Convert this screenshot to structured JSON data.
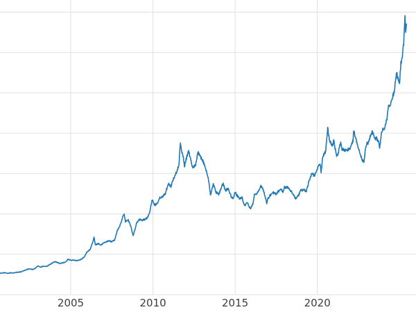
{
  "chart_data": {
    "type": "line",
    "title": "",
    "xlabel": "",
    "ylabel": "",
    "grid": true,
    "legend": "none",
    "xlim": [
      2000.7,
      2026.0
    ],
    "ylim": [
      0,
      3650
    ],
    "x_ticks": [
      {
        "year": 2005,
        "label": "2005"
      },
      {
        "year": 2010,
        "label": "2010"
      },
      {
        "year": 2015,
        "label": "2015"
      },
      {
        "year": 2020,
        "label": "2020"
      }
    ],
    "y_gridlines": [
      0,
      500,
      1000,
      1500,
      2000,
      2500,
      3000,
      3500
    ],
    "line_color": "#1f77b4",
    "grid_color": "#e0e0e0",
    "tick_color": "#3c3c3c",
    "background_color": "#ffffff",
    "series": [
      {
        "points": [
          [
            2000.7,
            265
          ],
          [
            2000.85,
            268
          ],
          [
            2001.0,
            272
          ],
          [
            2001.17,
            263
          ],
          [
            2001.33,
            272
          ],
          [
            2001.5,
            267
          ],
          [
            2001.67,
            276
          ],
          [
            2001.83,
            279
          ],
          [
            2002.0,
            284
          ],
          [
            2002.17,
            298
          ],
          [
            2002.33,
            312
          ],
          [
            2002.5,
            320
          ],
          [
            2002.67,
            312
          ],
          [
            2002.83,
            323
          ],
          [
            2003.0,
            356
          ],
          [
            2003.17,
            342
          ],
          [
            2003.33,
            352
          ],
          [
            2003.5,
            348
          ],
          [
            2003.67,
            366
          ],
          [
            2003.83,
            385
          ],
          [
            2004.0,
            408
          ],
          [
            2004.17,
            402
          ],
          [
            2004.33,
            388
          ],
          [
            2004.5,
            394
          ],
          [
            2004.67,
            403
          ],
          [
            2004.83,
            438
          ],
          [
            2005.0,
            426
          ],
          [
            2005.17,
            429
          ],
          [
            2005.33,
            421
          ],
          [
            2005.5,
            426
          ],
          [
            2005.67,
            440
          ],
          [
            2005.83,
            470
          ],
          [
            2006.0,
            532
          ],
          [
            2006.17,
            556
          ],
          [
            2006.33,
            642
          ],
          [
            2006.42,
            713
          ],
          [
            2006.5,
            618
          ],
          [
            2006.67,
            632
          ],
          [
            2006.83,
            614
          ],
          [
            2007.0,
            641
          ],
          [
            2007.17,
            656
          ],
          [
            2007.33,
            668
          ],
          [
            2007.5,
            657
          ],
          [
            2007.67,
            674
          ],
          [
            2007.83,
            790
          ],
          [
            2008.0,
            858
          ],
          [
            2008.17,
            968
          ],
          [
            2008.25,
            1000
          ],
          [
            2008.33,
            908
          ],
          [
            2008.5,
            928
          ],
          [
            2008.67,
            840
          ],
          [
            2008.79,
            728
          ],
          [
            2008.92,
            816
          ],
          [
            2009.0,
            882
          ],
          [
            2009.17,
            934
          ],
          [
            2009.33,
            921
          ],
          [
            2009.5,
            933
          ],
          [
            2009.67,
            952
          ],
          [
            2009.83,
            1042
          ],
          [
            2009.95,
            1175
          ],
          [
            2010.08,
            1108
          ],
          [
            2010.25,
            1125
          ],
          [
            2010.42,
            1200
          ],
          [
            2010.58,
            1215
          ],
          [
            2010.75,
            1245
          ],
          [
            2010.92,
            1370
          ],
          [
            2011.0,
            1365
          ],
          [
            2011.1,
            1342
          ],
          [
            2011.25,
            1432
          ],
          [
            2011.42,
            1512
          ],
          [
            2011.58,
            1608
          ],
          [
            2011.67,
            1882
          ],
          [
            2011.75,
            1782
          ],
          [
            2011.83,
            1726
          ],
          [
            2011.92,
            1598
          ],
          [
            2012.0,
            1662
          ],
          [
            2012.17,
            1782
          ],
          [
            2012.33,
            1644
          ],
          [
            2012.42,
            1572
          ],
          [
            2012.58,
            1602
          ],
          [
            2012.75,
            1772
          ],
          [
            2012.83,
            1722
          ],
          [
            2013.0,
            1672
          ],
          [
            2013.17,
            1592
          ],
          [
            2013.33,
            1472
          ],
          [
            2013.42,
            1382
          ],
          [
            2013.5,
            1232
          ],
          [
            2013.67,
            1362
          ],
          [
            2013.75,
            1332
          ],
          [
            2013.83,
            1272
          ],
          [
            2014.0,
            1242
          ],
          [
            2014.17,
            1332
          ],
          [
            2014.25,
            1382
          ],
          [
            2014.42,
            1292
          ],
          [
            2014.58,
            1312
          ],
          [
            2014.75,
            1222
          ],
          [
            2014.88,
            1182
          ],
          [
            2015.0,
            1272
          ],
          [
            2015.1,
            1232
          ],
          [
            2015.25,
            1192
          ],
          [
            2015.42,
            1202
          ],
          [
            2015.58,
            1102
          ],
          [
            2015.75,
            1142
          ],
          [
            2015.92,
            1062
          ],
          [
            2016.08,
            1120
          ],
          [
            2016.17,
            1232
          ],
          [
            2016.33,
            1252
          ],
          [
            2016.5,
            1322
          ],
          [
            2016.58,
            1352
          ],
          [
            2016.75,
            1272
          ],
          [
            2016.92,
            1132
          ],
          [
            2017.0,
            1192
          ],
          [
            2017.17,
            1242
          ],
          [
            2017.33,
            1262
          ],
          [
            2017.5,
            1242
          ],
          [
            2017.67,
            1292
          ],
          [
            2017.75,
            1312
          ],
          [
            2017.92,
            1272
          ],
          [
            2018.0,
            1332
          ],
          [
            2018.17,
            1332
          ],
          [
            2018.33,
            1302
          ],
          [
            2018.5,
            1252
          ],
          [
            2018.67,
            1192
          ],
          [
            2018.83,
            1222
          ],
          [
            2019.0,
            1292
          ],
          [
            2019.17,
            1302
          ],
          [
            2019.33,
            1282
          ],
          [
            2019.5,
            1412
          ],
          [
            2019.67,
            1502
          ],
          [
            2019.83,
            1472
          ],
          [
            2020.0,
            1562
          ],
          [
            2020.08,
            1592
          ],
          [
            2020.17,
            1622
          ],
          [
            2020.23,
            1502
          ],
          [
            2020.33,
            1712
          ],
          [
            2020.5,
            1772
          ],
          [
            2020.58,
            1952
          ],
          [
            2020.63,
            2062
          ],
          [
            2020.75,
            1902
          ],
          [
            2020.83,
            1882
          ],
          [
            2020.92,
            1842
          ],
          [
            2021.0,
            1902
          ],
          [
            2021.08,
            1812
          ],
          [
            2021.17,
            1722
          ],
          [
            2021.25,
            1732
          ],
          [
            2021.42,
            1892
          ],
          [
            2021.5,
            1802
          ],
          [
            2021.67,
            1792
          ],
          [
            2021.83,
            1792
          ],
          [
            2021.92,
            1802
          ],
          [
            2022.0,
            1812
          ],
          [
            2022.17,
            1912
          ],
          [
            2022.21,
            2042
          ],
          [
            2022.33,
            1942
          ],
          [
            2022.5,
            1822
          ],
          [
            2022.58,
            1762
          ],
          [
            2022.75,
            1662
          ],
          [
            2022.83,
            1642
          ],
          [
            2022.92,
            1792
          ],
          [
            2023.0,
            1872
          ],
          [
            2023.08,
            1862
          ],
          [
            2023.25,
            1982
          ],
          [
            2023.33,
            2022
          ],
          [
            2023.5,
            1922
          ],
          [
            2023.58,
            1942
          ],
          [
            2023.75,
            1872
          ],
          [
            2023.79,
            1832
          ],
          [
            2023.92,
            2032
          ],
          [
            2024.0,
            2052
          ],
          [
            2024.08,
            2032
          ],
          [
            2024.25,
            2202
          ],
          [
            2024.33,
            2332
          ],
          [
            2024.42,
            2352
          ],
          [
            2024.5,
            2392
          ],
          [
            2024.58,
            2452
          ],
          [
            2024.67,
            2502
          ],
          [
            2024.75,
            2662
          ],
          [
            2024.83,
            2742
          ],
          [
            2024.92,
            2652
          ],
          [
            2025.0,
            2642
          ],
          [
            2025.08,
            2862
          ],
          [
            2025.17,
            2922
          ],
          [
            2025.25,
            3122
          ],
          [
            2025.3,
            3342
          ],
          [
            2025.33,
            3432
          ],
          [
            2025.37,
            3282
          ],
          [
            2025.42,
            3352
          ]
        ]
      }
    ]
  }
}
